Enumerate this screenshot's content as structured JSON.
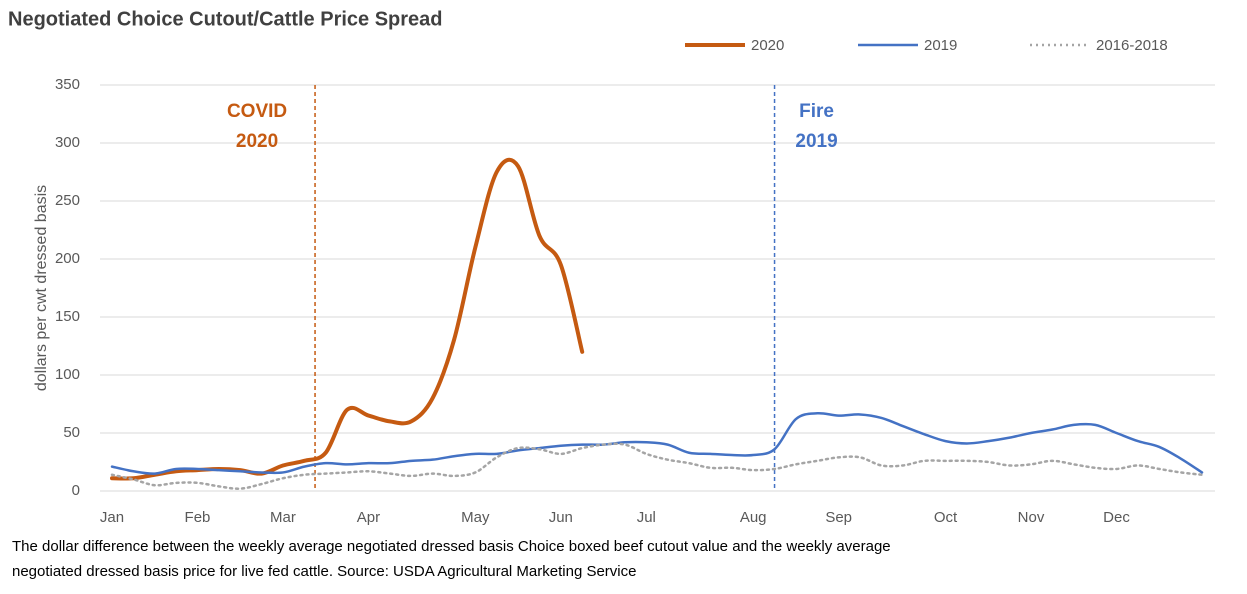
{
  "chart_data": {
    "type": "line",
    "title": "Negotiated Choice Cutout/Cattle Price Spread",
    "y_label": "dollars per cwt dressed basis",
    "footnote": [
      "The dollar difference between the weekly average negotiated dressed basis Choice boxed beef cutout value and the weekly average",
      "negotiated dressed basis price for live fed cattle. Source: USDA Agricultural Marketing Service"
    ],
    "categories": [
      "Jan",
      null,
      null,
      null,
      "Feb",
      null,
      null,
      null,
      "Mar",
      null,
      null,
      null,
      "Apr",
      null,
      null,
      null,
      null,
      "May",
      null,
      null,
      null,
      "Jun",
      null,
      null,
      null,
      "Jul",
      null,
      null,
      null,
      null,
      "Aug",
      null,
      null,
      null,
      "Sep",
      null,
      null,
      null,
      null,
      "Oct",
      null,
      null,
      null,
      "Nov",
      null,
      null,
      null,
      "Dec",
      null,
      null,
      null,
      null
    ],
    "series": [
      {
        "name": "2020",
        "color": "#c55a11",
        "width": 4,
        "dash": false,
        "values": [
          11,
          11,
          14,
          17,
          18,
          19,
          18,
          15,
          22,
          26,
          33,
          70,
          65,
          60,
          60,
          80,
          130,
          210,
          275,
          280,
          220,
          195,
          120,
          null,
          null,
          null,
          null,
          null,
          null,
          null,
          null,
          null,
          null,
          null,
          null,
          null,
          null,
          null,
          null,
          null,
          null,
          null,
          null,
          null,
          null,
          null,
          null,
          null,
          null,
          null,
          null,
          null
        ]
      },
      {
        "name": "2019",
        "color": "#4472c4",
        "width": 2.5,
        "dash": false,
        "values": [
          21,
          17,
          15,
          19,
          19,
          18,
          17,
          16,
          16,
          21,
          24,
          23,
          24,
          24,
          26,
          27,
          30,
          32,
          32,
          35,
          37,
          39,
          40,
          40,
          42,
          42,
          40,
          33,
          32,
          31,
          31,
          36,
          62,
          67,
          65,
          66,
          63,
          56,
          49,
          43,
          41,
          43,
          46,
          50,
          53,
          57,
          57,
          50,
          43,
          38,
          28,
          16
        ]
      },
      {
        "name": "2016-2018",
        "color": "#a5a5a5",
        "width": 2.5,
        "dash": true,
        "values": [
          14,
          10,
          5,
          7,
          7,
          4,
          2,
          6,
          11,
          14,
          15,
          16,
          17,
          15,
          13,
          15,
          13,
          16,
          29,
          37,
          36,
          32,
          37,
          40,
          40,
          32,
          27,
          24,
          20,
          20,
          18,
          19,
          23,
          26,
          29,
          29,
          22,
          22,
          26,
          26,
          26,
          25,
          22,
          23,
          26,
          23,
          20,
          19,
          22,
          19,
          16,
          14
        ]
      }
    ],
    "annotations": [
      {
        "text": [
          "COVID",
          "2020"
        ],
        "at": 9.5,
        "color": "#c55a11"
      },
      {
        "text": [
          "Fire",
          "2019"
        ],
        "at": 31,
        "color": "#4472c4"
      }
    ],
    "ylim": [
      0,
      350
    ],
    "yticks": [
      0,
      50,
      100,
      150,
      200,
      250,
      300,
      350
    ],
    "grid": true
  }
}
